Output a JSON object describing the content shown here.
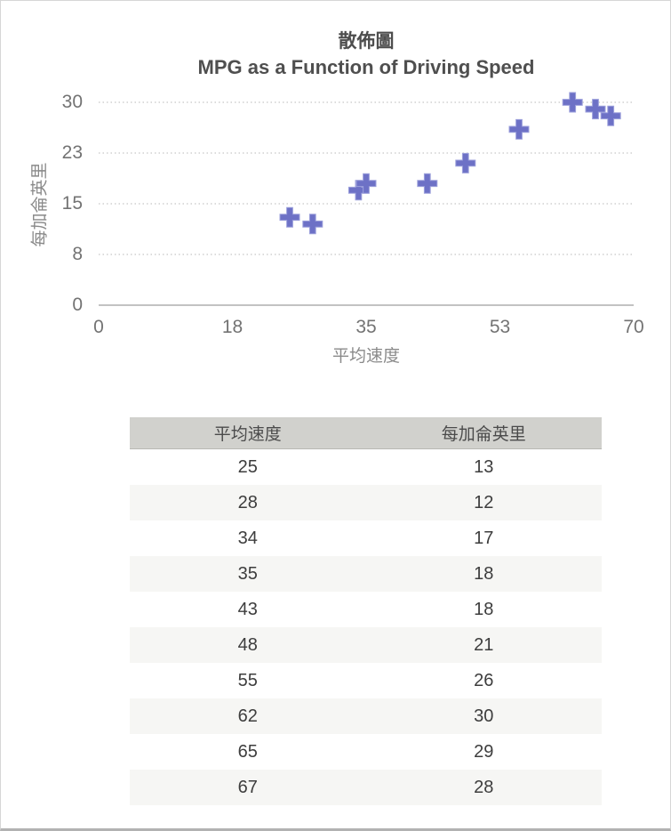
{
  "page": {
    "background": "#ffffff",
    "border_color": "#d6d6d6",
    "bottom_bar_color": "#b2b2b2"
  },
  "chart": {
    "marker_color": "#6d71c6",
    "marker_edge_color": "#9da1dc",
    "grid_color": "#c6c6c6",
    "axis_line_color": "#c3c3c3",
    "title_color": "#4d4d4d",
    "tick_color": "#737373",
    "axis_title_color": "#8a8a8a"
  },
  "chart_data": {
    "type": "scatter",
    "title": "散佈圖",
    "subtitle": "MPG as a Function of Driving Speed",
    "xlabel": "平均速度",
    "ylabel": "每加侖英里",
    "x": [
      25,
      28,
      34,
      35,
      43,
      48,
      55,
      62,
      65,
      67
    ],
    "y": [
      13,
      12,
      17,
      18,
      18,
      21,
      26,
      30,
      29,
      28
    ],
    "xlim": [
      0,
      70
    ],
    "ylim": [
      0,
      30
    ],
    "x_ticks": {
      "values": [
        0,
        17.5,
        35,
        52.5,
        70
      ],
      "labels": [
        "0",
        "18",
        "35",
        "53",
        "70"
      ]
    },
    "y_ticks": {
      "values": [
        0,
        7.5,
        15,
        22.5,
        30
      ],
      "labels": [
        "0",
        "8",
        "15",
        "23",
        "30"
      ]
    },
    "grid": "horizontal-dotted",
    "marker": "plus",
    "legend": false
  },
  "table": {
    "headers": [
      "平均速度",
      "每加侖英里"
    ],
    "rows": [
      [
        "25",
        "13"
      ],
      [
        "28",
        "12"
      ],
      [
        "34",
        "17"
      ],
      [
        "35",
        "18"
      ],
      [
        "43",
        "18"
      ],
      [
        "48",
        "21"
      ],
      [
        "55",
        "26"
      ],
      [
        "62",
        "30"
      ],
      [
        "65",
        "29"
      ],
      [
        "67",
        "28"
      ]
    ]
  }
}
